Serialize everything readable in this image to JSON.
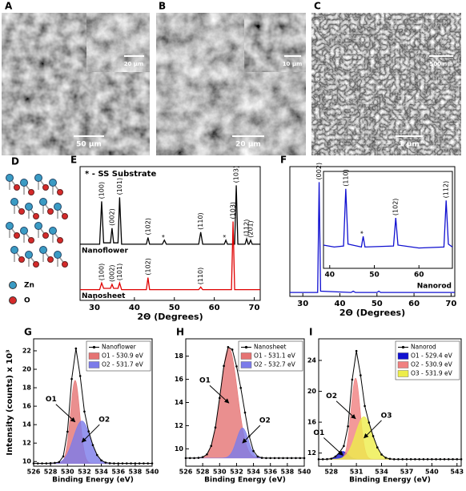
{
  "images": [
    {
      "label": "A",
      "scale_bar": "50 µm",
      "inset_scale_bar": "20 µm"
    },
    {
      "label": "B",
      "scale_bar": "20 µm",
      "inset_scale_bar": "10 µm"
    },
    {
      "label": "C",
      "scale_bar": "1 µm",
      "inset_scale_bar": "500 nm"
    }
  ],
  "structure": {
    "label": "D",
    "legend": [
      {
        "name": "Zn",
        "color": "#3a9bc4"
      },
      {
        "name": "O",
        "color": "#d62a2a"
      }
    ]
  },
  "chart_data": [
    {
      "type": "line",
      "panel": "E",
      "note": "* - SS Substrate",
      "xlabel": "2Θ (Degrees)",
      "xlim": [
        26.4,
        71.5
      ],
      "xticks": [
        30,
        40,
        50,
        60,
        70
      ],
      "ylim": [
        0,
        100
      ],
      "series": [
        {
          "name": "Nanoflower",
          "color": "#000000",
          "x": [
            26.4,
            31.3,
            31.8,
            32.3,
            34.0,
            34.4,
            34.8,
            35.9,
            36.3,
            36.8,
            43.0,
            43.4,
            43.8,
            47.0,
            47.5,
            48.0,
            56.1,
            56.6,
            57.1,
            62.5,
            62.9,
            63.3,
            65.1,
            65.5,
            65.9,
            67.7,
            68.1,
            68.5,
            68.7,
            69.1,
            69.5,
            71.5
          ],
          "values": [
            42,
            42,
            74,
            43,
            43,
            54,
            43,
            43,
            77,
            42,
            42,
            47,
            42,
            42,
            45,
            42,
            42,
            51,
            42,
            42,
            45,
            42,
            42,
            86,
            42,
            42,
            46,
            42,
            42,
            45,
            42,
            42
          ],
          "peak_labels": [
            {
              "text": "(100)",
              "x": 31.8
            },
            {
              "text": "(002)",
              "x": 34.4
            },
            {
              "text": "(101)",
              "x": 36.3
            },
            {
              "text": "(102)",
              "x": 43.4
            },
            {
              "text": "*",
              "x": 47.5
            },
            {
              "text": "(110)",
              "x": 56.6
            },
            {
              "text": "*",
              "x": 62.9
            },
            {
              "text": "(103)",
              "x": 65.5
            },
            {
              "text": "(112)",
              "x": 68.1
            },
            {
              "text": "(201)",
              "x": 69.1
            }
          ]
        },
        {
          "name": "Nanosheet",
          "color": "#e00000",
          "x": [
            26.4,
            31.3,
            31.8,
            32.3,
            34.0,
            34.4,
            34.8,
            35.9,
            36.3,
            36.8,
            43.0,
            43.4,
            43.8,
            56.1,
            56.6,
            57.1,
            64.3,
            64.7,
            65.1,
            71.5
          ],
          "values": [
            8,
            8,
            13,
            9,
            9,
            12,
            9,
            9,
            13,
            8,
            8,
            17,
            8,
            8,
            10,
            8,
            8,
            59,
            8,
            8
          ],
          "peak_labels": [
            {
              "text": "(100)",
              "x": 31.8
            },
            {
              "text": "(002)",
              "x": 34.4
            },
            {
              "text": "(101)",
              "x": 36.3
            },
            {
              "text": "(102)",
              "x": 43.4
            },
            {
              "text": "(110)",
              "x": 56.6
            },
            {
              "text": "(103)",
              "x": 64.7
            }
          ]
        }
      ]
    },
    {
      "type": "line",
      "panel": "F",
      "xlabel": "2Θ (Degrees)",
      "xlim": [
        26.5,
        71
      ],
      "xticks": [
        30,
        40,
        50,
        60,
        70
      ],
      "ylim": [
        0,
        100
      ],
      "series": [
        {
          "name": "Nanorod",
          "color": "#1010d0",
          "x": [
            26.5,
            34.0,
            34.4,
            34.8,
            43,
            43.6,
            44.2,
            50,
            50.5,
            51,
            71
          ],
          "values": [
            3,
            3,
            88,
            4,
            3,
            4,
            3,
            3,
            4,
            3,
            3
          ],
          "peak_labels": [
            {
              "text": "(002)",
              "x": 34.4
            }
          ]
        }
      ]
    },
    {
      "type": "line",
      "xlim": [
        38.6,
        67.5
      ],
      "xticks": [
        40,
        50,
        60
      ],
      "ylim": [
        0,
        100
      ],
      "series": [
        {
          "color": "#1010d0",
          "x": [
            38.6,
            41,
            43.1,
            43.6,
            44.1,
            47.1,
            47.5,
            47.9,
            54.3,
            54.8,
            55.3,
            60,
            65.6,
            66.1,
            66.6,
            67.5
          ],
          "values": [
            24,
            22,
            23,
            82,
            25,
            22,
            33,
            22,
            23,
            52,
            24,
            21,
            22,
            70,
            25,
            22
          ],
          "peak_labels": [
            {
              "text": "(110)",
              "x": 43.6
            },
            {
              "text": "*",
              "x": 47.5
            },
            {
              "text": "(102)",
              "x": 54.8
            },
            {
              "text": "(112)",
              "x": 66.1
            }
          ]
        }
      ]
    },
    {
      "type": "fit",
      "panel": "G",
      "ylabel": "Intensity (counts) x 10³",
      "xlabel": "Binding Energy (eV)",
      "xlim": [
        526,
        540
      ],
      "xticks": [
        526,
        528,
        530,
        532,
        534,
        536,
        538,
        540
      ],
      "ylim": [
        9.5,
        23.3
      ],
      "yticks": [
        10,
        12,
        14,
        16,
        18,
        20,
        22
      ],
      "baseline": 9.8,
      "series": [
        {
          "name": "Nanoflower",
          "color": "#000000",
          "x": [
            526,
            526.5,
            527,
            527.5,
            528,
            528.5,
            529,
            529.5,
            530,
            530.5,
            531,
            531.5,
            532,
            532.5,
            533,
            533.5,
            534,
            534.5,
            535,
            535.5,
            536,
            536.5,
            537,
            537.5,
            538,
            538.5,
            539,
            539.5,
            540
          ],
          "values": [
            9.8,
            9.8,
            9.8,
            9.8,
            9.82,
            9.85,
            9.94,
            10.56,
            13.24,
            18.95,
            22.25,
            19.27,
            15.42,
            13.27,
            11.78,
            10.71,
            10.13,
            9.89,
            9.82,
            9.8,
            9.8,
            9.8,
            9.8,
            9.8,
            9.8,
            9.8,
            9.8,
            9.8,
            9.8
          ]
        }
      ],
      "components": [
        {
          "name": "O1 - 530.9 eV",
          "label": "O1",
          "color": "#e57373",
          "center": 530.9,
          "height": 9.0,
          "sigma": 0.55
        },
        {
          "name": "O2 - 531.7 eV",
          "label": "O2",
          "color": "#7b7bea",
          "center": 531.7,
          "height": 4.6,
          "sigma": 1.0
        }
      ]
    },
    {
      "type": "fit",
      "panel": "H",
      "xlabel": "Binding Energy (eV)",
      "xlim": [
        526,
        540
      ],
      "xticks": [
        526,
        528,
        530,
        532,
        534,
        536,
        538,
        540
      ],
      "ylim": [
        8.5,
        19.5
      ],
      "yticks": [
        10,
        12,
        14,
        16,
        18
      ],
      "baseline": 9.2,
      "series": [
        {
          "name": "Nanosheet",
          "color": "#000000",
          "x": [
            526,
            526.5,
            527,
            527.5,
            528,
            528.5,
            529,
            529.5,
            530,
            530.5,
            531,
            531.5,
            532,
            532.5,
            533,
            533.5,
            534,
            534.5,
            535,
            535.5,
            536,
            536.5,
            537,
            537.5,
            538,
            538.5,
            539,
            539.5,
            540
          ],
          "values": [
            9.2,
            9.2,
            9.2,
            9.22,
            9.28,
            9.52,
            10.25,
            11.84,
            14.39,
            17.16,
            18.79,
            18.57,
            17.12,
            15.26,
            13.13,
            11.08,
            9.81,
            9.33,
            9.22,
            9.2,
            9.2,
            9.2,
            9.2,
            9.2,
            9.2,
            9.2,
            9.2,
            9.2,
            9.2
          ]
        }
      ],
      "components": [
        {
          "name": "O1 - 531.1 eV",
          "label": "O1",
          "color": "#e57373",
          "center": 531.1,
          "height": 9.5,
          "sigma": 1.0
        },
        {
          "name": "O2 - 532.7 eV",
          "label": "O2",
          "color": "#7b7bea",
          "center": 532.7,
          "height": 2.6,
          "sigma": 0.7
        }
      ]
    },
    {
      "type": "fit",
      "panel": "I",
      "xlabel": "Binding Energy (eV)",
      "xlim": [
        526.5,
        543.5
      ],
      "xticks": [
        528,
        531,
        534,
        537,
        540,
        543
      ],
      "ylim": [
        10.3,
        26.8
      ],
      "yticks": [
        12,
        16,
        20,
        24
      ],
      "baseline": 11.2,
      "series": [
        {
          "name": "Nanorod",
          "color": "#000000",
          "x": [
            526.5,
            527,
            527.5,
            528,
            528.5,
            529,
            529.5,
            530,
            530.5,
            531,
            531.5,
            532,
            532.5,
            533,
            533.5,
            534,
            534.5,
            535,
            535.5,
            536,
            536.5,
            537,
            537.5,
            538,
            538.5,
            539,
            539.5,
            540,
            540.5,
            541,
            541.5,
            542,
            542.5,
            543,
            543.5
          ],
          "values": [
            11.2,
            11.2,
            11.21,
            11.27,
            11.55,
            12.11,
            12.91,
            15.46,
            21.51,
            25.23,
            22.07,
            18.09,
            15.95,
            14.2,
            12.73,
            11.81,
            11.39,
            11.25,
            11.2,
            11.2,
            11.2,
            11.2,
            11.2,
            11.2,
            11.2,
            11.2,
            11.2,
            11.2,
            11.2,
            11.2,
            11.2,
            11.2,
            11.2,
            11.2,
            11.2
          ]
        }
      ],
      "components": [
        {
          "name": "O1 - 529.4 eV",
          "label": "O1",
          "color": "#1010d0",
          "center": 529.4,
          "height": 1.0,
          "sigma": 0.6
        },
        {
          "name": "O2 - 530.9 eV",
          "label": "O2",
          "color": "#f08080",
          "center": 530.9,
          "height": 10.5,
          "sigma": 0.55
        },
        {
          "name": "O3 - 531.9 eV",
          "label": "O3",
          "color": "#eded4a",
          "center": 531.9,
          "height": 5.5,
          "sigma": 1.0
        }
      ]
    }
  ]
}
